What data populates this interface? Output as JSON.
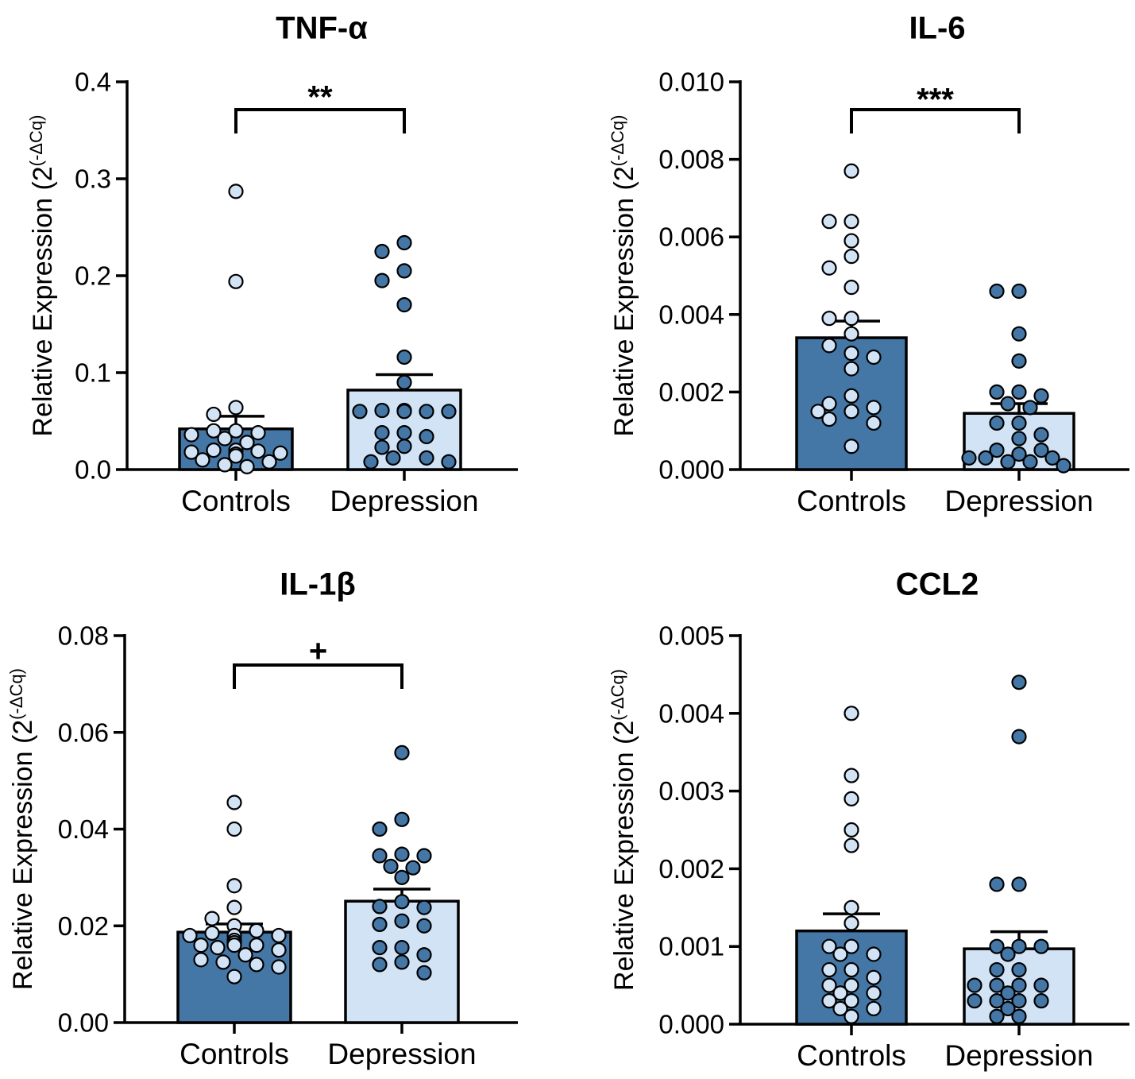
{
  "palette": {
    "dark": "#4477a6",
    "light": "#d2e3f6",
    "ink": "#000000"
  },
  "ylabel_text": "Relative Expression (2",
  "ylabel_sup": "(-ΔCq)",
  "chart_data": [
    {
      "type": "bar",
      "title": "TNF-α",
      "categories": [
        "Controls",
        "Depression"
      ],
      "values": [
        0.042,
        0.082
      ],
      "sem": [
        0.013,
        0.016
      ],
      "bar_colors": [
        "dark",
        "light"
      ],
      "point_colors": [
        "light",
        "dark"
      ],
      "ylim": [
        0,
        0.4
      ],
      "yticks": [
        "0.0",
        "0.1",
        "0.2",
        "0.3",
        "0.4"
      ],
      "significance": "**",
      "points": [
        [
          0.287,
          0.194,
          0.064,
          0.057,
          0.04,
          0.04,
          0.038,
          0.036,
          0.032,
          0.028,
          0.02,
          0.02,
          0.019,
          0.018,
          0.017,
          0.016,
          0.014,
          0.01,
          0.008,
          0.005,
          0.003
        ],
        [
          0.234,
          0.225,
          0.205,
          0.195,
          0.17,
          0.116,
          0.09,
          0.061,
          0.061,
          0.06,
          0.06,
          0.06,
          0.06,
          0.038,
          0.038,
          0.034,
          0.024,
          0.023,
          0.012,
          0.012,
          0.008,
          0.008
        ]
      ]
    },
    {
      "type": "bar",
      "title": "IL-6",
      "categories": [
        "Controls",
        "Depression"
      ],
      "values": [
        0.0034,
        0.00145
      ],
      "sem": [
        0.00043,
        0.00025
      ],
      "bar_colors": [
        "dark",
        "light"
      ],
      "point_colors": [
        "light",
        "dark"
      ],
      "ylim": [
        0,
        0.01
      ],
      "yticks": [
        "0.000",
        "0.002",
        "0.004",
        "0.006",
        "0.008",
        "0.010"
      ],
      "significance": "***",
      "points": [
        [
          0.0077,
          0.0064,
          0.0064,
          0.0059,
          0.0055,
          0.0052,
          0.0047,
          0.0039,
          0.0039,
          0.0035,
          0.0032,
          0.003,
          0.0029,
          0.0026,
          0.0019,
          0.0017,
          0.0016,
          0.0015,
          0.0015,
          0.0013,
          0.0012,
          0.0006
        ],
        [
          0.0046,
          0.0046,
          0.0035,
          0.0028,
          0.002,
          0.002,
          0.0019,
          0.0017,
          0.0016,
          0.0012,
          0.0012,
          0.0009,
          0.0008,
          0.0005,
          0.0005,
          0.0004,
          0.0003,
          0.0003,
          0.0003,
          0.0002,
          0.0002,
          0.0001
        ]
      ]
    },
    {
      "type": "bar",
      "title": "IL-1β",
      "categories": [
        "Controls",
        "Depression"
      ],
      "values": [
        0.0187,
        0.0251
      ],
      "sem": [
        0.0017,
        0.0025
      ],
      "bar_colors": [
        "dark",
        "light"
      ],
      "point_colors": [
        "light",
        "dark"
      ],
      "ylim": [
        0,
        0.08
      ],
      "yticks": [
        "0.00",
        "0.02",
        "0.04",
        "0.06",
        "0.08"
      ],
      "significance": "+",
      "points": [
        [
          0.0455,
          0.04,
          0.0283,
          0.0238,
          0.0215,
          0.02,
          0.019,
          0.0185,
          0.018,
          0.018,
          0.018,
          0.017,
          0.0165,
          0.0165,
          0.016,
          0.016,
          0.016,
          0.0155,
          0.015,
          0.014,
          0.013,
          0.0125,
          0.012,
          0.0115,
          0.0095
        ],
        [
          0.0558,
          0.042,
          0.04,
          0.0348,
          0.0345,
          0.0345,
          0.0323,
          0.032,
          0.03,
          0.025,
          0.024,
          0.0238,
          0.021,
          0.0203,
          0.02,
          0.0155,
          0.0155,
          0.014,
          0.0125,
          0.012,
          0.0103
        ]
      ]
    },
    {
      "type": "bar",
      "title": "CCL2",
      "categories": [
        "Controls",
        "Depression"
      ],
      "values": [
        0.0012,
        0.00097
      ],
      "sem": [
        0.00022,
        0.00022
      ],
      "bar_colors": [
        "dark",
        "light"
      ],
      "point_colors": [
        "light",
        "dark"
      ],
      "ylim": [
        0,
        0.005
      ],
      "yticks": [
        "0.000",
        "0.001",
        "0.002",
        "0.003",
        "0.004",
        "0.005"
      ],
      "significance": "",
      "points": [
        [
          0.004,
          0.0032,
          0.0029,
          0.0025,
          0.0023,
          0.0015,
          0.0013,
          0.001,
          0.001,
          0.0009,
          0.0009,
          0.0007,
          0.0007,
          0.0006,
          0.0005,
          0.0005,
          0.0004,
          0.0004,
          0.0003,
          0.0003,
          0.0002,
          0.0002,
          0.0001
        ],
        [
          0.0044,
          0.0037,
          0.0018,
          0.0018,
          0.001,
          0.001,
          0.001,
          0.0009,
          0.0007,
          0.0007,
          0.0005,
          0.0005,
          0.0005,
          0.0005,
          0.0004,
          0.0003,
          0.0003,
          0.0003,
          0.0003,
          0.0002,
          0.0001,
          0.0001
        ]
      ]
    }
  ]
}
